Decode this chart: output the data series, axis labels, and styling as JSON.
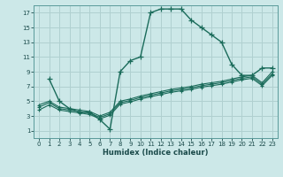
{
  "title": "",
  "xlabel": "Humidex (Indice chaleur)",
  "bg_color": "#cce8e8",
  "grid_color": "#b0d0d0",
  "line_color": "#1a6b5a",
  "xlim": [
    -0.5,
    23.5
  ],
  "ylim": [
    0,
    18
  ],
  "xticks": [
    0,
    1,
    2,
    3,
    4,
    5,
    6,
    7,
    8,
    9,
    10,
    11,
    12,
    13,
    14,
    15,
    16,
    17,
    18,
    19,
    20,
    21,
    22,
    23
  ],
  "yticks": [
    1,
    3,
    5,
    7,
    9,
    11,
    13,
    15,
    17
  ],
  "main_x": [
    1,
    2,
    3,
    4,
    5,
    6,
    7,
    8,
    9,
    10,
    11,
    12,
    13,
    14,
    15,
    16,
    17,
    18,
    19,
    20,
    21,
    22,
    23
  ],
  "main_y": [
    8,
    5,
    4,
    3.5,
    3.5,
    2.5,
    1.2,
    9,
    10.5,
    11,
    17,
    17.5,
    17.5,
    17.5,
    16,
    15,
    14,
    13,
    10,
    8.5,
    8.5,
    9.5,
    9.5
  ],
  "line1_x": [
    0,
    1,
    2,
    3,
    4,
    5,
    6,
    7,
    8,
    9,
    10,
    11,
    12,
    13,
    14,
    15,
    16,
    17,
    18,
    19,
    20,
    21,
    22,
    23
  ],
  "line1_y": [
    4.5,
    5.0,
    4.2,
    4.0,
    3.8,
    3.6,
    3.0,
    3.5,
    5.0,
    5.3,
    5.7,
    6.0,
    6.3,
    6.6,
    6.8,
    7.0,
    7.3,
    7.5,
    7.7,
    8.0,
    8.3,
    8.5,
    7.5,
    9.0
  ],
  "line2_x": [
    0,
    1,
    2,
    3,
    4,
    5,
    6,
    7,
    8,
    9,
    10,
    11,
    12,
    13,
    14,
    15,
    16,
    17,
    18,
    19,
    20,
    21,
    22,
    23
  ],
  "line2_y": [
    4.2,
    4.8,
    4.0,
    3.8,
    3.6,
    3.4,
    2.8,
    3.3,
    4.8,
    5.1,
    5.5,
    5.8,
    6.1,
    6.4,
    6.6,
    6.8,
    7.1,
    7.3,
    7.5,
    7.8,
    8.1,
    8.3,
    7.3,
    8.7
  ],
  "line3_x": [
    0,
    1,
    2,
    3,
    4,
    5,
    6,
    7,
    8,
    9,
    10,
    11,
    12,
    13,
    14,
    15,
    16,
    17,
    18,
    19,
    20,
    21,
    22,
    23
  ],
  "line3_y": [
    3.8,
    4.5,
    3.8,
    3.6,
    3.4,
    3.2,
    2.6,
    3.1,
    4.6,
    4.9,
    5.3,
    5.6,
    5.9,
    6.2,
    6.4,
    6.6,
    6.9,
    7.1,
    7.3,
    7.6,
    7.9,
    8.1,
    7.1,
    8.5
  ]
}
